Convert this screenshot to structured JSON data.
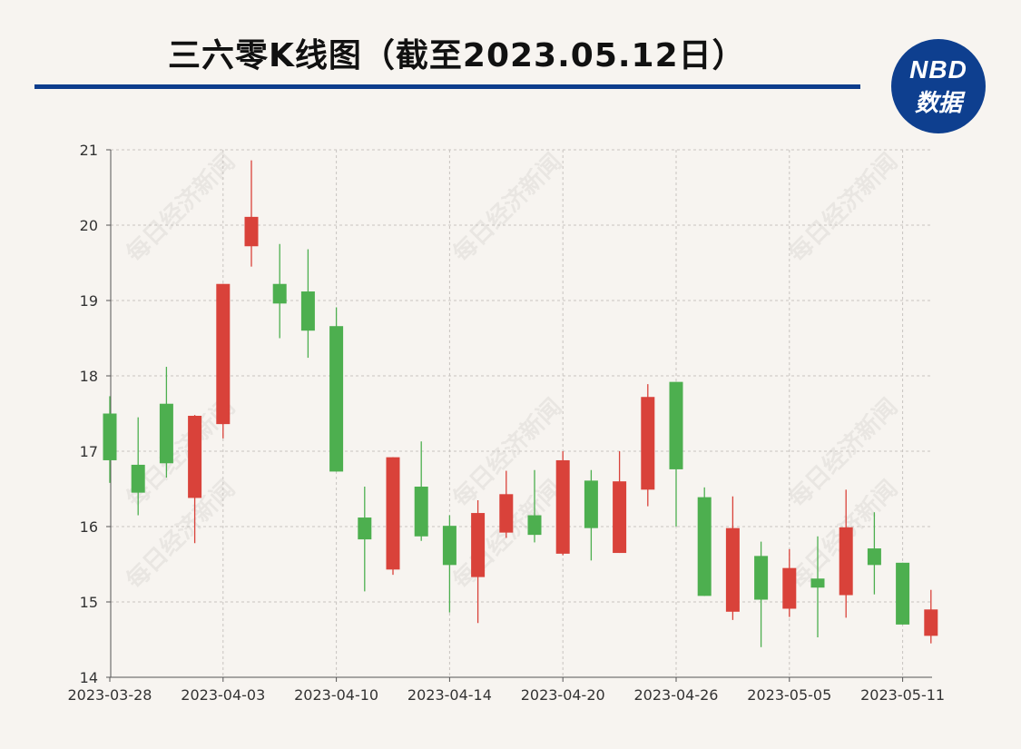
{
  "header": {
    "title": "三六零K线图（截至2023.05.12日）"
  },
  "logo": {
    "top_text": "NBD",
    "bottom_text": "数据"
  },
  "watermark": "每日经济新闻",
  "colors": {
    "up": "#d9423a",
    "down": "#4daf4f",
    "title_rule": "#0d3d8c",
    "grid": "#c8c4c0",
    "background": "#f7f4f0"
  },
  "chart_data": {
    "type": "candlestick",
    "ylim": [
      14,
      21
    ],
    "yticks": [
      14,
      15,
      16,
      17,
      18,
      19,
      20,
      21
    ],
    "grid": true,
    "xtick_labels": [
      {
        "index": 0,
        "label": "2023-03-28"
      },
      {
        "index": 4,
        "label": "2023-04-03"
      },
      {
        "index": 8,
        "label": "2023-04-10"
      },
      {
        "index": 12,
        "label": "2023-04-14"
      },
      {
        "index": 16,
        "label": "2023-04-20"
      },
      {
        "index": 20,
        "label": "2023-04-26"
      },
      {
        "index": 24,
        "label": "2023-05-05"
      },
      {
        "index": 28,
        "label": "2023-05-11"
      }
    ],
    "candles": [
      {
        "open": 17.5,
        "close": 16.88,
        "high": 17.73,
        "low": 16.58
      },
      {
        "open": 16.82,
        "close": 16.45,
        "high": 17.45,
        "low": 16.15
      },
      {
        "open": 17.63,
        "close": 16.84,
        "high": 18.12,
        "low": 16.65
      },
      {
        "open": 16.38,
        "close": 17.47,
        "high": 17.48,
        "low": 15.78
      },
      {
        "open": 17.36,
        "close": 19.22,
        "high": 19.22,
        "low": 17.17
      },
      {
        "open": 19.72,
        "close": 20.11,
        "high": 20.86,
        "low": 19.45
      },
      {
        "open": 19.22,
        "close": 18.96,
        "high": 19.75,
        "low": 18.5
      },
      {
        "open": 19.12,
        "close": 18.6,
        "high": 19.68,
        "low": 18.24
      },
      {
        "open": 18.66,
        "close": 16.73,
        "high": 18.91,
        "low": 16.73
      },
      {
        "open": 16.12,
        "close": 15.83,
        "high": 16.53,
        "low": 15.14
      },
      {
        "open": 15.43,
        "close": 16.92,
        "high": 16.92,
        "low": 15.36
      },
      {
        "open": 16.53,
        "close": 15.87,
        "high": 17.13,
        "low": 15.81
      },
      {
        "open": 16.01,
        "close": 15.49,
        "high": 16.15,
        "low": 14.86
      },
      {
        "open": 15.33,
        "close": 16.18,
        "high": 16.35,
        "low": 14.72
      },
      {
        "open": 15.92,
        "close": 16.43,
        "high": 16.74,
        "low": 15.85
      },
      {
        "open": 16.15,
        "close": 15.89,
        "high": 16.75,
        "low": 15.79
      },
      {
        "open": 15.64,
        "close": 16.88,
        "high": 17.0,
        "low": 15.62
      },
      {
        "open": 16.61,
        "close": 15.98,
        "high": 16.75,
        "low": 15.55
      },
      {
        "open": 15.65,
        "close": 16.6,
        "high": 17.0,
        "low": 15.65
      },
      {
        "open": 16.49,
        "close": 17.72,
        "high": 17.89,
        "low": 16.27
      },
      {
        "open": 17.92,
        "close": 16.76,
        "high": 17.92,
        "low": 16.0
      },
      {
        "open": 16.39,
        "close": 15.08,
        "high": 16.52,
        "low": 15.08
      },
      {
        "open": 14.87,
        "close": 15.98,
        "high": 16.4,
        "low": 14.76
      },
      {
        "open": 15.61,
        "close": 15.03,
        "high": 15.8,
        "low": 14.4
      },
      {
        "open": 14.91,
        "close": 15.45,
        "high": 15.7,
        "low": 14.8
      },
      {
        "open": 15.31,
        "close": 15.19,
        "high": 15.87,
        "low": 14.53
      },
      {
        "open": 15.09,
        "close": 15.99,
        "high": 16.49,
        "low": 14.79
      },
      {
        "open": 15.71,
        "close": 15.49,
        "high": 16.19,
        "low": 15.1
      },
      {
        "open": 15.52,
        "close": 14.7,
        "high": 15.52,
        "low": 14.7
      },
      {
        "open": 14.55,
        "close": 14.9,
        "high": 15.16,
        "low": 14.45
      }
    ]
  }
}
